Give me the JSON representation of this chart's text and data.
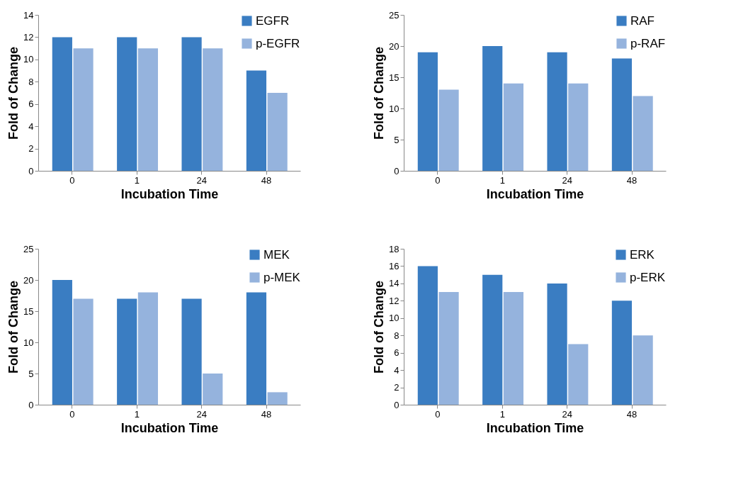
{
  "chart_data": [
    {
      "type": "bar",
      "categories": [
        "0",
        "1",
        "24",
        "48"
      ],
      "xlabel": "Incubation Time",
      "ylabel": "Fold of Change",
      "ylim": [
        0,
        14
      ],
      "yticks": [
        0,
        2,
        4,
        6,
        8,
        10,
        12,
        14
      ],
      "grid": false,
      "legend": "top right",
      "series": [
        {
          "name": "EGFR",
          "color": "#3a7dc2",
          "values": [
            12,
            12,
            12,
            9
          ]
        },
        {
          "name": "p-EGFR",
          "color": "#95b3dd",
          "values": [
            11,
            11,
            11,
            7
          ]
        }
      ]
    },
    {
      "type": "bar",
      "categories": [
        "0",
        "1",
        "24",
        "48"
      ],
      "xlabel": "Incubation Time",
      "ylabel": "Fold of Change",
      "ylim": [
        0,
        25
      ],
      "yticks": [
        0,
        5,
        10,
        15,
        20,
        25
      ],
      "grid": false,
      "legend": "top right",
      "series": [
        {
          "name": "RAF",
          "color": "#3a7dc2",
          "values": [
            19,
            20,
            19,
            18
          ]
        },
        {
          "name": "p-RAF",
          "color": "#95b3dd",
          "values": [
            13,
            14,
            14,
            12
          ]
        }
      ]
    },
    {
      "type": "bar",
      "categories": [
        "0",
        "1",
        "24",
        "48"
      ],
      "xlabel": "Incubation Time",
      "ylabel": "Fold of Change",
      "ylim": [
        0,
        25
      ],
      "yticks": [
        0,
        5,
        10,
        15,
        20,
        25
      ],
      "grid": false,
      "legend": "top right",
      "series": [
        {
          "name": "MEK",
          "color": "#3a7dc2",
          "values": [
            20,
            17,
            17,
            18
          ]
        },
        {
          "name": "p-MEK",
          "color": "#95b3dd",
          "values": [
            17,
            18,
            5,
            2
          ]
        }
      ]
    },
    {
      "type": "bar",
      "categories": [
        "0",
        "1",
        "24",
        "48"
      ],
      "xlabel": "Incubation Time",
      "ylabel": "Fold of Change",
      "ylim": [
        0,
        18
      ],
      "yticks": [
        0,
        2,
        4,
        6,
        8,
        10,
        12,
        14,
        16,
        18
      ],
      "grid": false,
      "legend": "top right",
      "series": [
        {
          "name": "ERK",
          "color": "#3a7dc2",
          "values": [
            16,
            15,
            14,
            12
          ]
        },
        {
          "name": "p-ERK",
          "color": "#95b3dd",
          "values": [
            13,
            13,
            7,
            8
          ]
        }
      ]
    }
  ]
}
